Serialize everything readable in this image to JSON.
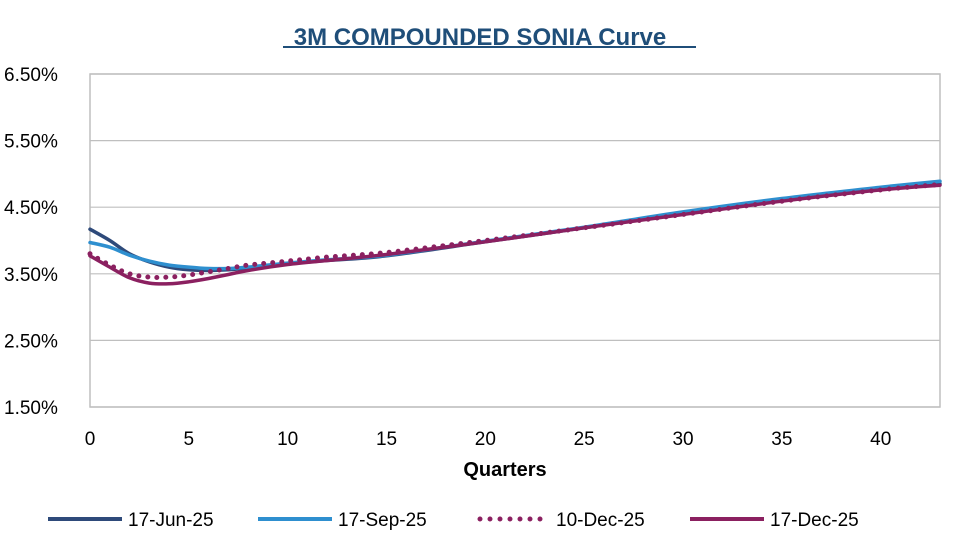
{
  "chart_data": {
    "type": "line",
    "title": "3M COMPOUNDED SONIA Curve",
    "xlabel": "Quarters",
    "ylabel": "",
    "xlim": [
      0,
      43
    ],
    "ylim": [
      1.5,
      6.5
    ],
    "x_ticks": [
      0,
      5,
      10,
      15,
      20,
      25,
      30,
      35,
      40
    ],
    "y_ticks": [
      1.5,
      2.5,
      3.5,
      4.5,
      5.5,
      6.5
    ],
    "y_tick_labels": [
      "1.50%",
      "2.50%",
      "3.50%",
      "4.50%",
      "5.50%",
      "6.50%"
    ],
    "grid": "horizontal",
    "legend_position": "bottom",
    "series": [
      {
        "name": "17-Jun-25",
        "color": "#2e4a7a",
        "style": "solid",
        "points": [
          [
            0,
            4.17
          ],
          [
            1,
            4.0
          ],
          [
            2,
            3.8
          ],
          [
            3,
            3.68
          ],
          [
            4,
            3.6
          ],
          [
            5,
            3.56
          ],
          [
            6,
            3.55
          ],
          [
            7,
            3.56
          ],
          [
            8,
            3.59
          ],
          [
            10,
            3.65
          ],
          [
            12,
            3.7
          ],
          [
            15,
            3.77
          ],
          [
            20,
            3.98
          ],
          [
            25,
            4.19
          ],
          [
            30,
            4.41
          ],
          [
            35,
            4.6
          ],
          [
            40,
            4.77
          ],
          [
            43,
            4.85
          ]
        ]
      },
      {
        "name": "17-Sep-25",
        "color": "#2e8fcf",
        "style": "solid",
        "points": [
          [
            0,
            3.97
          ],
          [
            1,
            3.9
          ],
          [
            2,
            3.78
          ],
          [
            3,
            3.69
          ],
          [
            4,
            3.63
          ],
          [
            5,
            3.6
          ],
          [
            6,
            3.58
          ],
          [
            7,
            3.58
          ],
          [
            8,
            3.6
          ],
          [
            10,
            3.66
          ],
          [
            12,
            3.71
          ],
          [
            15,
            3.78
          ],
          [
            20,
            3.99
          ],
          [
            25,
            4.2
          ],
          [
            30,
            4.43
          ],
          [
            35,
            4.63
          ],
          [
            40,
            4.8
          ],
          [
            43,
            4.89
          ]
        ]
      },
      {
        "name": "10-Dec-25",
        "color": "#8b2060",
        "style": "dotted",
        "points": [
          [
            0,
            3.8
          ],
          [
            1,
            3.63
          ],
          [
            2,
            3.5
          ],
          [
            3,
            3.45
          ],
          [
            4,
            3.45
          ],
          [
            5,
            3.48
          ],
          [
            6,
            3.53
          ],
          [
            7,
            3.58
          ],
          [
            8,
            3.63
          ],
          [
            10,
            3.69
          ],
          [
            12,
            3.75
          ],
          [
            15,
            3.82
          ],
          [
            20,
            4.0
          ],
          [
            25,
            4.19
          ],
          [
            30,
            4.39
          ],
          [
            35,
            4.59
          ],
          [
            40,
            4.76
          ],
          [
            43,
            4.84
          ]
        ]
      },
      {
        "name": "17-Dec-25",
        "color": "#8b2060",
        "style": "solid",
        "points": [
          [
            0,
            3.77
          ],
          [
            1,
            3.6
          ],
          [
            2,
            3.44
          ],
          [
            3,
            3.36
          ],
          [
            4,
            3.35
          ],
          [
            5,
            3.38
          ],
          [
            6,
            3.43
          ],
          [
            7,
            3.49
          ],
          [
            8,
            3.55
          ],
          [
            10,
            3.64
          ],
          [
            12,
            3.7
          ],
          [
            15,
            3.79
          ],
          [
            20,
            3.98
          ],
          [
            25,
            4.19
          ],
          [
            30,
            4.39
          ],
          [
            35,
            4.59
          ],
          [
            40,
            4.76
          ],
          [
            43,
            4.83
          ]
        ]
      }
    ]
  }
}
